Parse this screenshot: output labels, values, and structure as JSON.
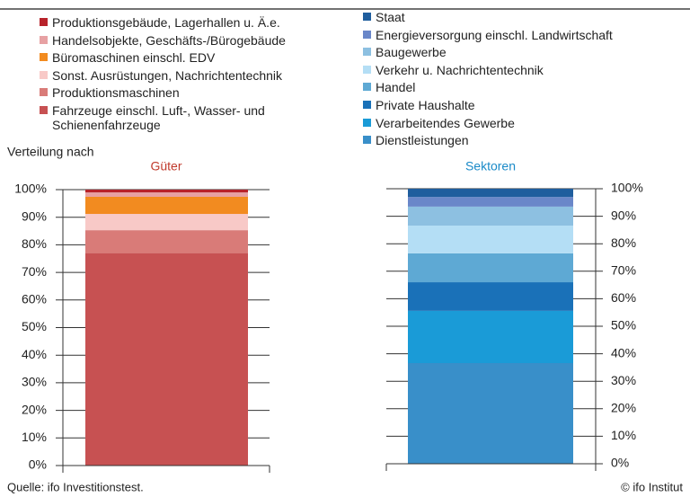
{
  "subtitle": "Verteilung nach",
  "source": "Quelle: ifo Investitionstest.",
  "copyright": "© ifo Institut",
  "chart_data": [
    {
      "type": "stacked-bar",
      "title": "Güter",
      "title_color": "#c0392b",
      "series": [
        {
          "name": "Produktionsgebäude, Lagerhallen u. Ä.e.",
          "color": "#b8232b",
          "values": [
            1.0
          ]
        },
        {
          "name": "Handelsobjekte, Geschäfts-/Bürogebäude",
          "color": "#e7a1a3",
          "values": [
            1.6
          ]
        },
        {
          "name": "Büromaschinen einschl. EDV",
          "color": "#f28b20",
          "values": [
            6.2
          ]
        },
        {
          "name": "Sonst. Ausrüstungen,  Nachrichtentechnik",
          "color": "#f8c9c7",
          "values": [
            5.9
          ]
        },
        {
          "name": "Produktionsmaschinen",
          "color": "#d97b78",
          "values": [
            8.3
          ]
        },
        {
          "name": "Fahrzeuge einschl. Luft-, Wasser- und Schienenfahrzeuge",
          "color": "#c75152",
          "values": [
            77
          ]
        }
      ],
      "ylim": [
        0,
        100
      ],
      "yticks": [
        {
          "value": 0,
          "label": "0%"
        },
        {
          "value": 10,
          "label": "10%"
        },
        {
          "value": 20,
          "label": "20%"
        },
        {
          "value": 30,
          "label": "30%"
        },
        {
          "value": 40,
          "label": "40%"
        },
        {
          "value": 50,
          "label": "50%"
        },
        {
          "value": 60,
          "label": "60%"
        },
        {
          "value": 70,
          "label": "70%"
        },
        {
          "value": 80,
          "label": "80%"
        },
        {
          "value": 90,
          "label": "90%"
        },
        {
          "value": 100,
          "label": "100%"
        }
      ],
      "grid": true
    },
    {
      "type": "stacked-bar",
      "title": "Sektoren",
      "title_color": "#1a8ac8",
      "series": [
        {
          "name": "Staat",
          "color": "#1f5e9e",
          "values": [
            3.0
          ]
        },
        {
          "name": "Energieversorgung einschl. Landwirtschaft",
          "color": "#6a87c9",
          "values": [
            3.5
          ]
        },
        {
          "name": "Baugewerbe",
          "color": "#8dc0e1",
          "values": [
            6.9
          ]
        },
        {
          "name": "Verkehr u. Nachrichtentechnik",
          "color": "#b4def5",
          "values": [
            10.1
          ]
        },
        {
          "name": "Handel",
          "color": "#5ea9d4",
          "values": [
            10.5
          ]
        },
        {
          "name": "Private Haushalte",
          "color": "#1a71b8",
          "values": [
            10.4
          ]
        },
        {
          "name": "Verarbeitendes Gewerbe",
          "color": "#1a9bd7",
          "values": [
            19
          ]
        },
        {
          "name": "Dienstleistungen",
          "color": "#398fc9",
          "values": [
            36.6
          ]
        }
      ],
      "ylim": [
        0,
        100
      ],
      "yticks": [
        {
          "value": 0,
          "label": "0%"
        },
        {
          "value": 10,
          "label": "10%"
        },
        {
          "value": 20,
          "label": "20%"
        },
        {
          "value": 30,
          "label": "30%"
        },
        {
          "value": 40,
          "label": "40%"
        },
        {
          "value": 50,
          "label": "50%"
        },
        {
          "value": 60,
          "label": "60%"
        },
        {
          "value": 70,
          "label": "70%"
        },
        {
          "value": 80,
          "label": "80%"
        },
        {
          "value": 90,
          "label": "90%"
        },
        {
          "value": 100,
          "label": "100%"
        }
      ],
      "grid": true
    }
  ]
}
